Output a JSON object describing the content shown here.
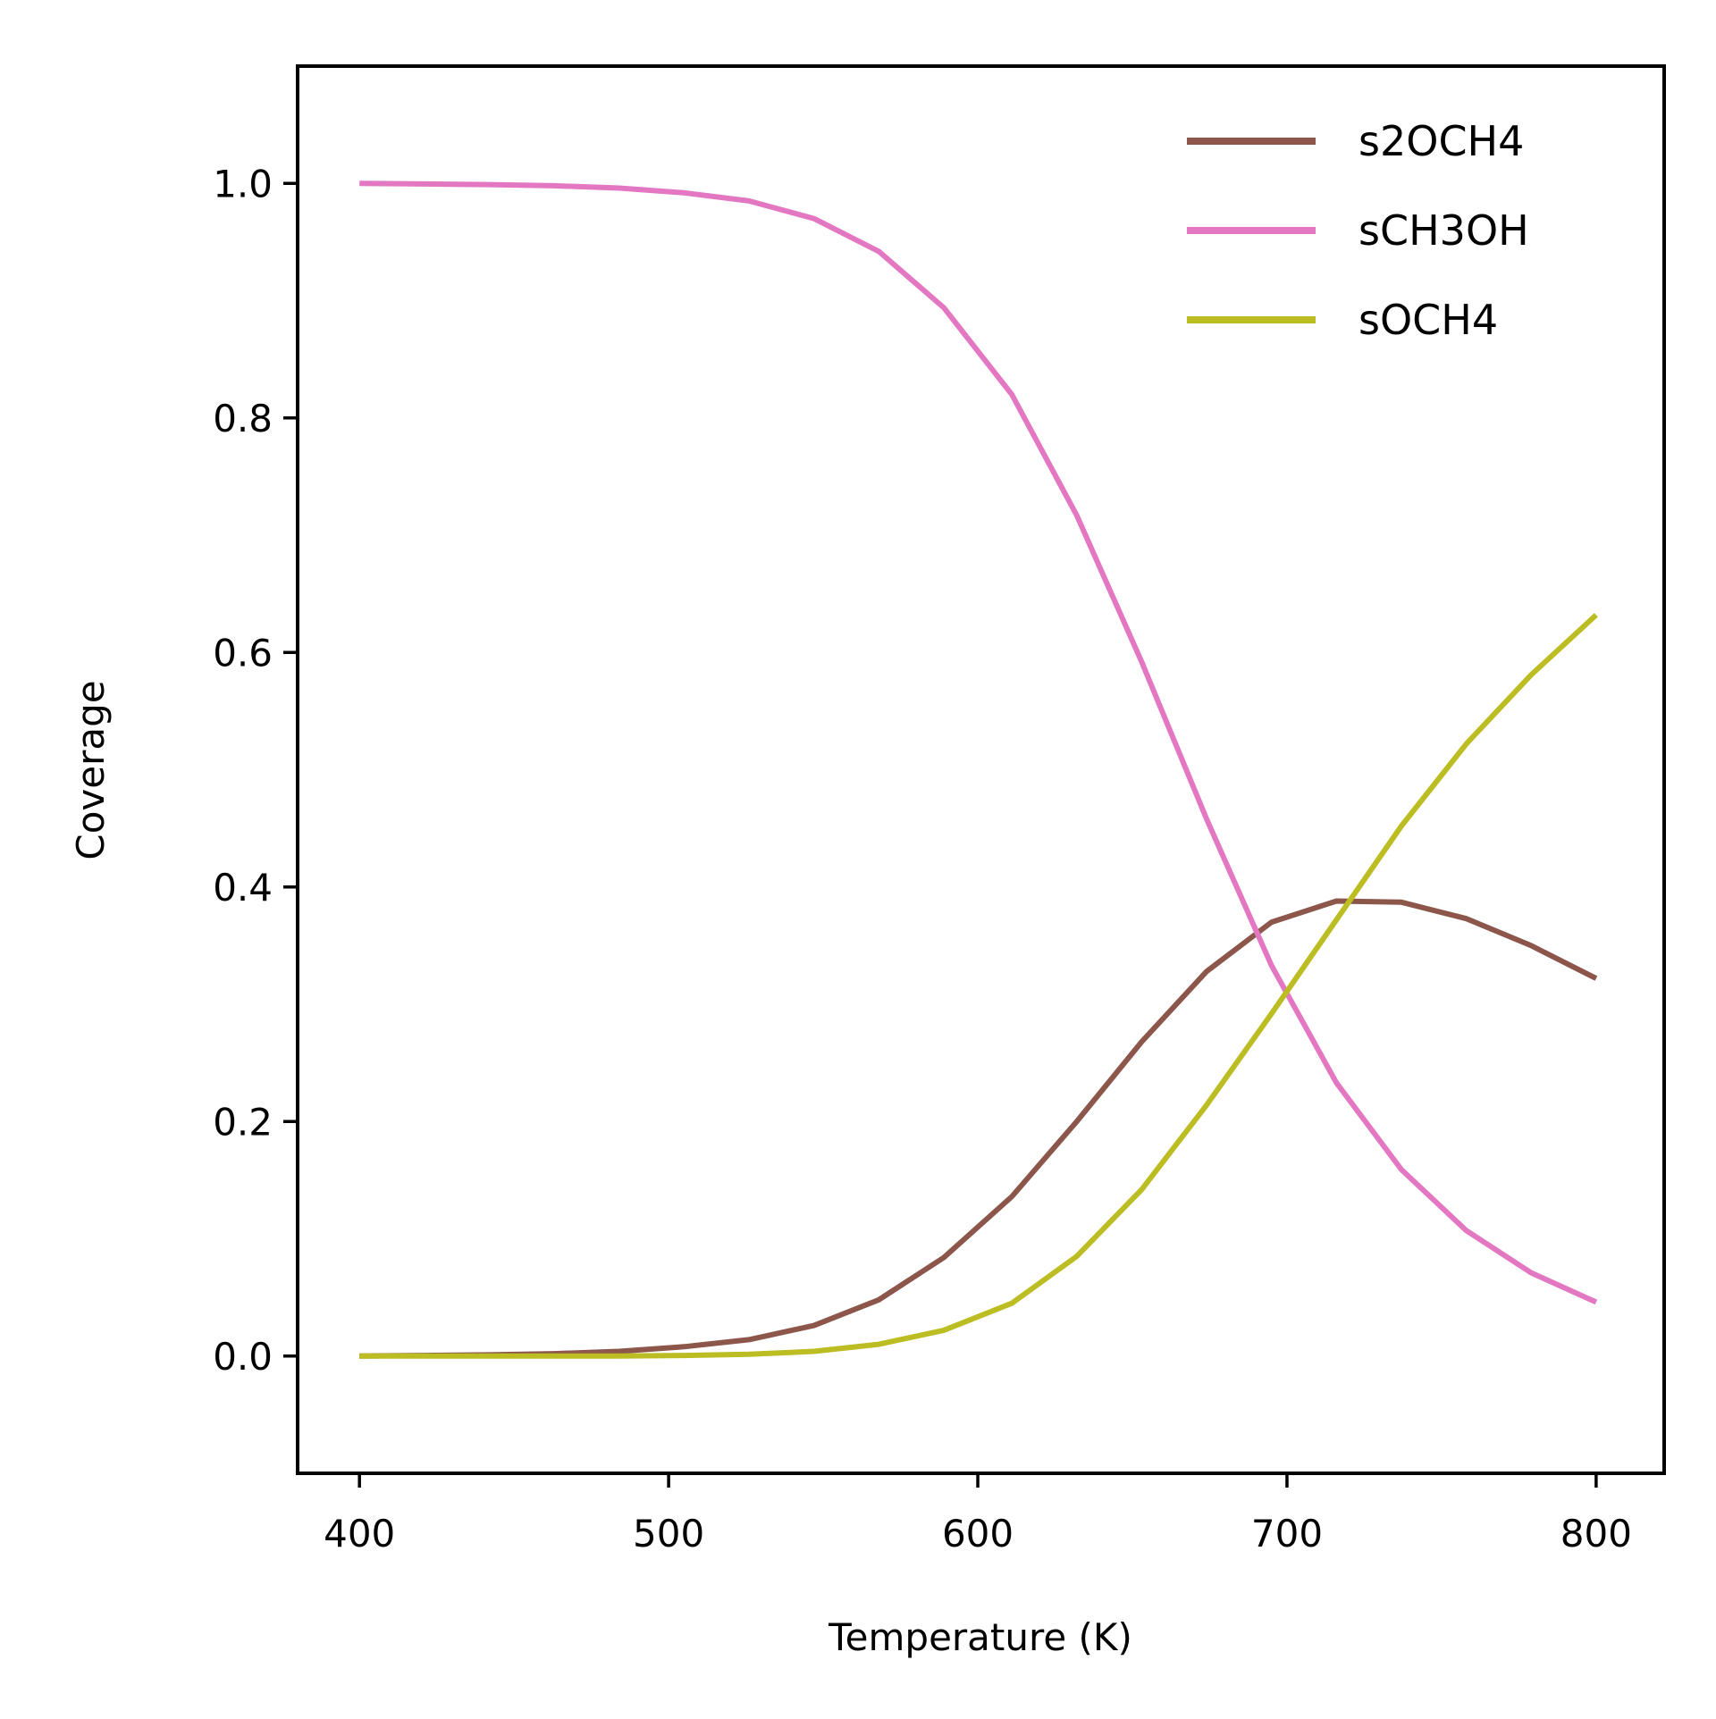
{
  "chart_data": {
    "type": "line",
    "title": "",
    "xlabel": "Temperature (K)",
    "ylabel": "Coverage",
    "xlim": [
      380,
      822
    ],
    "ylim": [
      -0.1,
      1.1
    ],
    "x_ticks": [
      400,
      500,
      600,
      700,
      800
    ],
    "x_tick_labels": [
      "400",
      "500",
      "600",
      "700",
      "800"
    ],
    "y_ticks": [
      0.0,
      0.2,
      0.4,
      0.6,
      0.8,
      1.0
    ],
    "y_tick_labels": [
      "0.0",
      "0.2",
      "0.4",
      "0.6",
      "0.8",
      "1.0"
    ],
    "grid": false,
    "legend_position": "top-right",
    "x": [
      400,
      421,
      442,
      463,
      484,
      505,
      526,
      547,
      568,
      589,
      611,
      632,
      653,
      674,
      695,
      716,
      737,
      758,
      779,
      800
    ],
    "series": [
      {
        "name": "s2OCH4",
        "color": "#8c564b",
        "values": [
          0.0,
          0.0005,
          0.001,
          0.002,
          0.004,
          0.008,
          0.014,
          0.026,
          0.048,
          0.084,
          0.136,
          0.2,
          0.268,
          0.328,
          0.37,
          0.388,
          0.387,
          0.373,
          0.35,
          0.322
        ]
      },
      {
        "name": "sCH3OH",
        "color": "#e377c2",
        "values": [
          1.0,
          0.9995,
          0.999,
          0.998,
          0.996,
          0.992,
          0.985,
          0.97,
          0.942,
          0.894,
          0.82,
          0.717,
          0.592,
          0.458,
          0.333,
          0.233,
          0.159,
          0.107,
          0.071,
          0.046
        ]
      },
      {
        "name": "sOCH4",
        "color": "#bcbd22",
        "values": [
          0.0,
          0.0,
          0.0,
          0.0,
          0.0,
          0.0005,
          0.0015,
          0.004,
          0.01,
          0.022,
          0.045,
          0.085,
          0.142,
          0.214,
          0.292,
          0.372,
          0.452,
          0.522,
          0.581,
          0.632
        ]
      }
    ]
  }
}
